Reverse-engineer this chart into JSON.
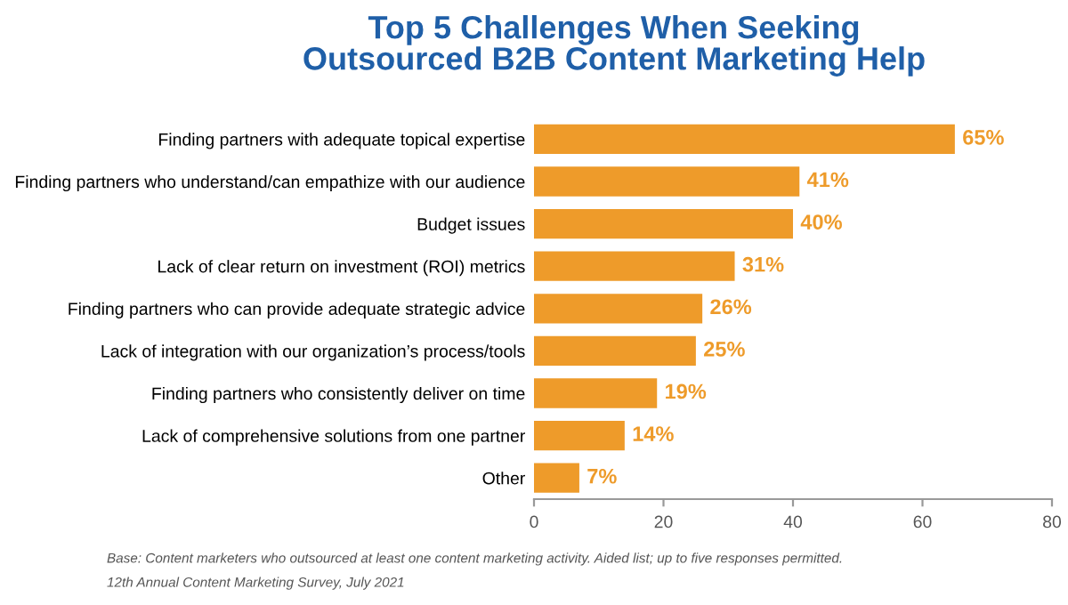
{
  "chart_data": {
    "type": "bar",
    "orientation": "horizontal",
    "title": "Top 5 Challenges When Seeking\nOutsourced B2B Content Marketing Help",
    "categories": [
      "Finding partners with adequate topical expertise",
      "Finding partners who understand/can empathize with our audience",
      "Budget issues",
      "Lack of clear return on investment (ROI) metrics",
      "Finding partners who can provide adequate strategic advice",
      "Lack of integration with our organization’s process/tools",
      "Finding partners who consistently deliver on time",
      "Lack of comprehensive solutions from one partner",
      "Other"
    ],
    "values": [
      65,
      41,
      40,
      31,
      26,
      25,
      19,
      14,
      7
    ],
    "value_labels": [
      "65%",
      "41%",
      "40%",
      "31%",
      "26%",
      "25%",
      "19%",
      "14%",
      "7%"
    ],
    "color": "#ee9b2a",
    "xlim": [
      0,
      80
    ],
    "xticks": [
      0,
      20,
      40,
      60,
      80
    ],
    "grid": false,
    "annotations": [
      "Base: Content marketers who outsourced at least one content marketing activity. Aided list; up to five responses permitted.",
      "12th Annual Content Marketing Survey, July 2021"
    ]
  }
}
